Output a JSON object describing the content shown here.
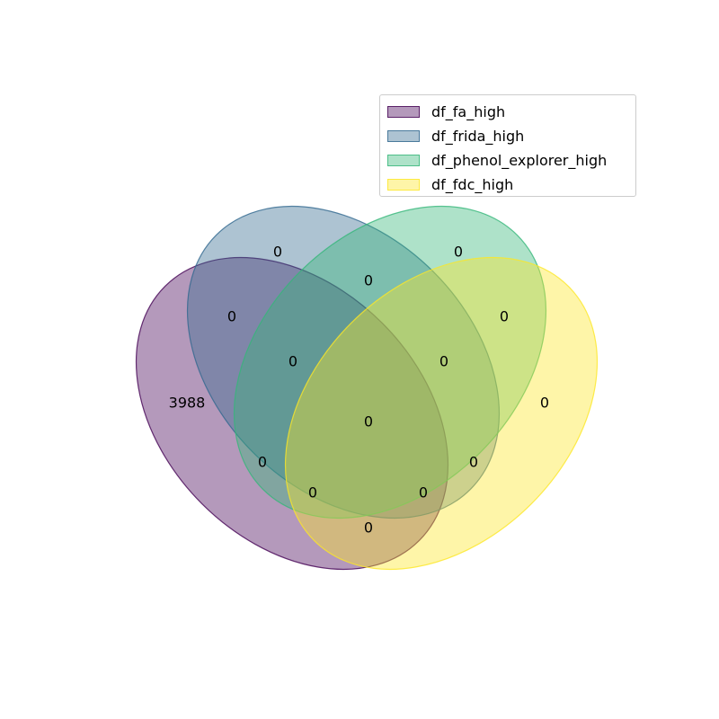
{
  "sets": [
    {
      "name": "df_fa_high",
      "fill": "#440154",
      "edge": "#440154"
    },
    {
      "name": "df_frida_high",
      "fill": "#31688e",
      "edge": "#31688e"
    },
    {
      "name": "df_phenol_explorer_high",
      "fill": "#35b779",
      "edge": "#35b779"
    },
    {
      "name": "df_fdc_high",
      "fill": "#fde725",
      "edge": "#fde725"
    }
  ],
  "regions": [
    {
      "sets": [
        "df_fa_high"
      ],
      "count": "3988"
    },
    {
      "sets": [
        "df_frida_high"
      ],
      "count": "0"
    },
    {
      "sets": [
        "df_phenol_explorer_high"
      ],
      "count": "0"
    },
    {
      "sets": [
        "df_fdc_high"
      ],
      "count": "0"
    },
    {
      "sets": [
        "df_fa_high",
        "df_frida_high"
      ],
      "count": "0"
    },
    {
      "sets": [
        "df_frida_high",
        "df_phenol_explorer_high"
      ],
      "count": "0"
    },
    {
      "sets": [
        "df_phenol_explorer_high",
        "df_fdc_high"
      ],
      "count": "0"
    },
    {
      "sets": [
        "df_fa_high",
        "df_frida_high",
        "df_phenol_explorer_high"
      ],
      "count": "0"
    },
    {
      "sets": [
        "df_frida_high",
        "df_phenol_explorer_high",
        "df_fdc_high"
      ],
      "count": "0"
    },
    {
      "sets": [
        "df_fa_high",
        "df_frida_high",
        "df_phenol_explorer_high",
        "df_fdc_high"
      ],
      "count": "0"
    },
    {
      "sets": [
        "df_fa_high",
        "df_phenol_explorer_high"
      ],
      "count": "0"
    },
    {
      "sets": [
        "df_frida_high",
        "df_fdc_high"
      ],
      "count": "0"
    },
    {
      "sets": [
        "df_fa_high",
        "df_phenol_explorer_high",
        "df_fdc_high"
      ],
      "count": "0"
    },
    {
      "sets": [
        "df_fa_high",
        "df_frida_high",
        "df_fdc_high"
      ],
      "count": "0"
    },
    {
      "sets": [
        "df_fa_high",
        "df_fdc_high"
      ],
      "count": "0"
    }
  ]
}
